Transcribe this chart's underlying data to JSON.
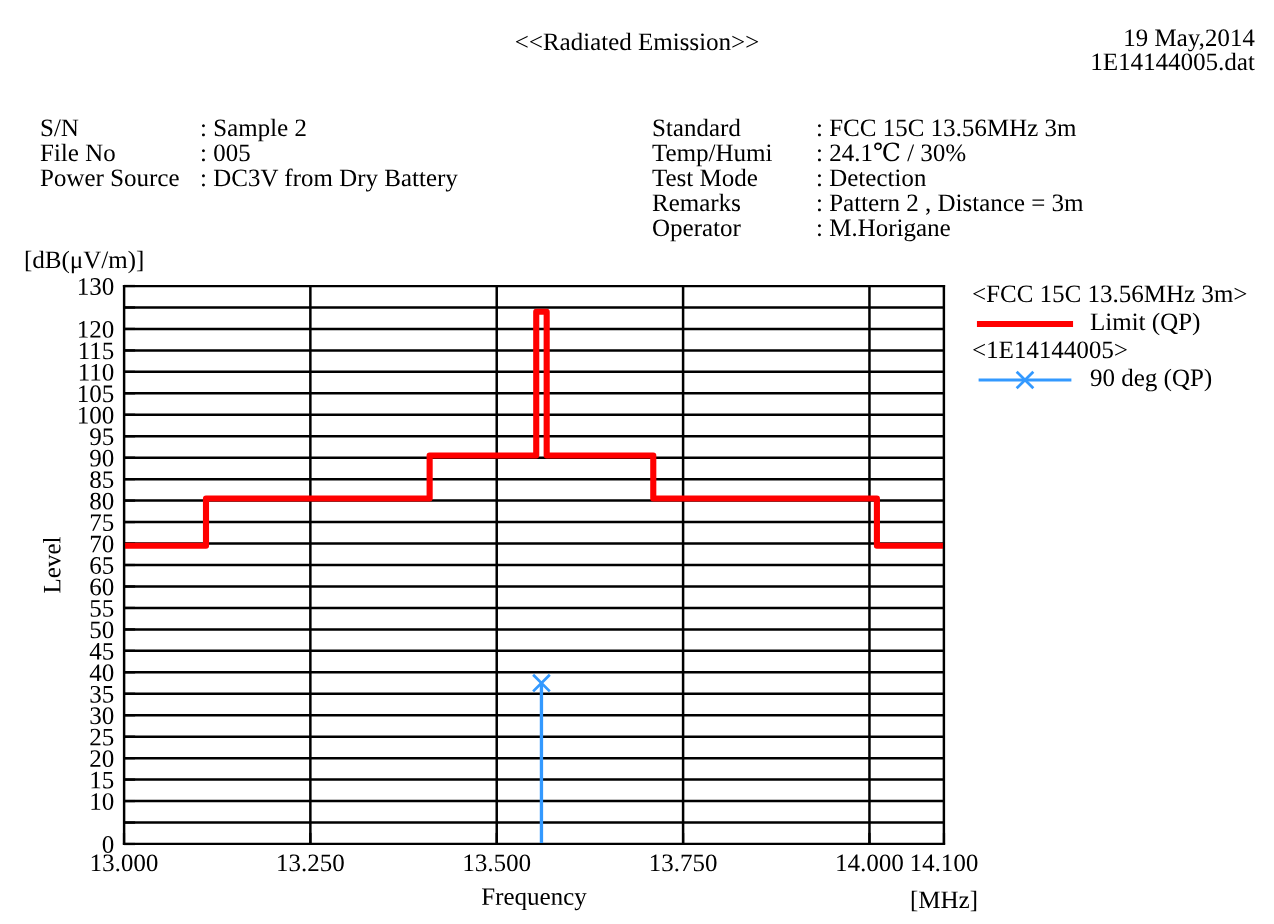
{
  "chart_data": {
    "type": "step",
    "title": "<<Radiated Emission>>",
    "xlabel": "Frequency",
    "ylabel": "Level",
    "annotations": [
      "19 May,2014",
      "1E14144005.dat",
      "[dB(μV/m)]",
      "[MHz]",
      "<FCC 15C 13.56MHz 3m>",
      "<1E14144005>",
      "S/N",
      ": Sample 2",
      "File No",
      ": 005",
      "Power Source",
      ": DC3V from Dry Battery",
      "Standard",
      ": FCC 15C 13.56MHz 3m",
      "Temp/Humi",
      ": 24.1℃ / 30%",
      "Test Mode",
      ": Detection",
      "Remarks",
      ": Pattern 2 , Distance = 3m",
      "Operator",
      ": M.Horigane"
    ],
    "series": [
      {
        "name": "Limit (QP)",
        "color": "#ff0000",
        "marker": "none",
        "x": [
          13.0,
          13.11,
          13.41,
          13.553,
          13.567,
          13.71,
          14.01,
          14.1
        ],
        "values": [
          69.5,
          80.5,
          90.5,
          124,
          90.5,
          80.5,
          69.5,
          69.5
        ]
      },
      {
        "name": "90 deg (QP)",
        "type": "lollipop",
        "color": "#3399ff",
        "marker": "cross",
        "x": [
          13.56
        ],
        "values": [
          37.5
        ]
      }
    ],
    "xlim": [
      13.0,
      14.1
    ],
    "ylim": [
      0,
      130
    ],
    "xticks": [
      {
        "value": 13.0,
        "label": "13.000"
      },
      {
        "value": 13.25,
        "label": "13.250"
      },
      {
        "value": 13.5,
        "label": "13.500"
      },
      {
        "value": 13.75,
        "label": "13.750"
      },
      {
        "value": 14.0,
        "label": "14.000"
      },
      {
        "value": 14.1,
        "label": "14.100"
      }
    ],
    "yticks": [
      0,
      {
        "value": 5,
        "label": null
      },
      10,
      15,
      20,
      25,
      30,
      35,
      40,
      45,
      50,
      55,
      60,
      65,
      70,
      75,
      80,
      85,
      90,
      95,
      100,
      105,
      110,
      115,
      120,
      {
        "value": 125,
        "label": null
      },
      130
    ],
    "grid": true,
    "legend": "right"
  }
}
